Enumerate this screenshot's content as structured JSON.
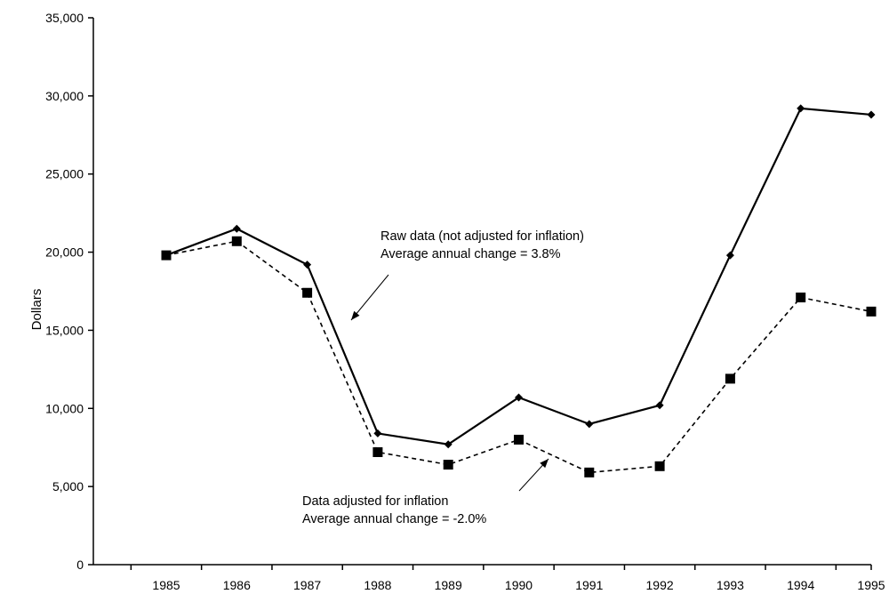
{
  "chart_data": {
    "type": "line",
    "title": "",
    "xlabel": "",
    "ylabel": "Dollars",
    "ylim": [
      0,
      35000
    ],
    "yticks": [
      0,
      5000,
      10000,
      15000,
      20000,
      25000,
      30000,
      35000
    ],
    "ytick_labels": [
      "0",
      "5,000",
      "10,000",
      "15,000",
      "20,000",
      "25,000",
      "30,000",
      "35,000"
    ],
    "categories": [
      "1985",
      "1986",
      "1987",
      "1988",
      "1989",
      "1990",
      "1991",
      "1992",
      "1993",
      "1994",
      "1995"
    ],
    "grid": false,
    "legend": "none",
    "series": [
      {
        "id": "raw",
        "color": "#000000",
        "line_style": "solid",
        "marker": "diamond",
        "values": [
          19800,
          21500,
          19200,
          8400,
          7700,
          10700,
          9000,
          10200,
          19800,
          29200,
          28800
        ]
      },
      {
        "id": "adjusted",
        "color": "#000000",
        "line_style": "dashed",
        "marker": "square",
        "values": [
          19800,
          20700,
          17400,
          7200,
          6400,
          8000,
          5900,
          6300,
          11900,
          17100,
          16200
        ]
      }
    ],
    "annotations": [
      {
        "id": "raw",
        "lines": [
          "Raw data (not adjusted for inflation)",
          "Average annual change = 3.8%"
        ]
      },
      {
        "id": "adjusted",
        "lines": [
          "Data adjusted for inflation",
          "Average annual change = -2.0%"
        ]
      }
    ]
  }
}
